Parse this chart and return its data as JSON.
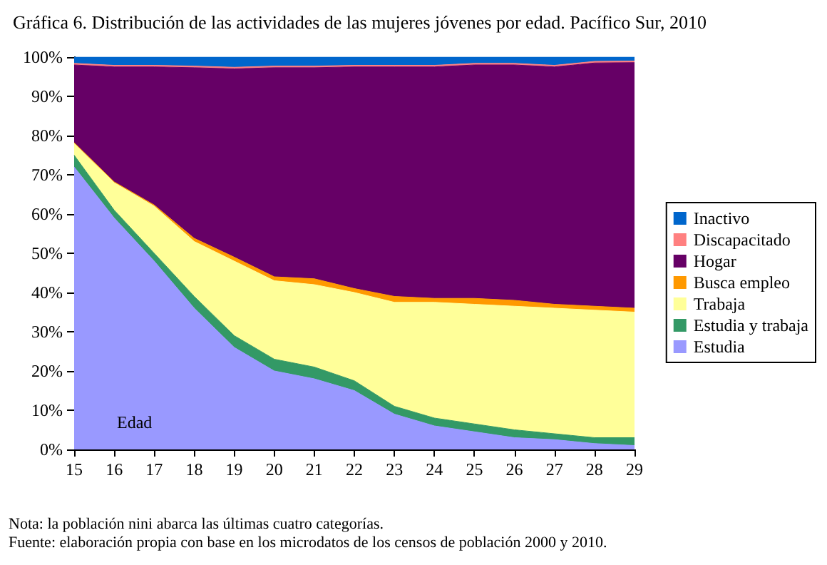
{
  "chart_data": {
    "type": "area",
    "stacked": true,
    "title": "Gráfica 6. Distribución de las actividades de las mujeres jóvenes por edad. Pacífico Sur, 2010",
    "xlabel": "Edad",
    "categories": [
      "15",
      "16",
      "17",
      "18",
      "19",
      "20",
      "21",
      "22",
      "23",
      "24",
      "25",
      "26",
      "27",
      "28",
      "29"
    ],
    "series": [
      {
        "name": "Estudia",
        "color": "#9999ff",
        "values": [
          72,
          59,
          48,
          36,
          26,
          20,
          18,
          15,
          9,
          6,
          4.5,
          3,
          2.5,
          1.5,
          1
        ]
      },
      {
        "name": "Estudia y trabaja",
        "color": "#339966",
        "values": [
          3,
          2,
          2,
          3,
          3,
          3,
          3,
          2.5,
          2,
          2,
          2,
          2,
          1.5,
          1.5,
          2
        ]
      },
      {
        "name": "Trabaja",
        "color": "#ffff99",
        "values": [
          3,
          7,
          12,
          14,
          19,
          20,
          21,
          22.5,
          26.5,
          29.5,
          30.5,
          31.5,
          32,
          32.5,
          32
        ]
      },
      {
        "name": "Busca empleo",
        "color": "#ff9900",
        "values": [
          0.2,
          0.2,
          0.3,
          0.8,
          1,
          1,
          1.5,
          1,
          1.5,
          1,
          1.5,
          1.5,
          1,
          1,
          1
        ]
      },
      {
        "name": "Hogar",
        "color": "#660066",
        "values": [
          19.8,
          29.3,
          35.2,
          43.5,
          48,
          53.3,
          53.8,
          56.5,
          58.5,
          59,
          59.5,
          60,
          60.5,
          62,
          62.6
        ]
      },
      {
        "name": "Discapacitado",
        "color": "#ff8080",
        "values": [
          0.4,
          0.4,
          0.4,
          0.4,
          0.4,
          0.4,
          0.4,
          0.4,
          0.4,
          0.4,
          0.4,
          0.4,
          0.4,
          0.4,
          0.4
        ]
      },
      {
        "name": "Inactivo",
        "color": "#0066cc",
        "values": [
          1.6,
          2.1,
          2.1,
          2.3,
          2.6,
          2.3,
          2.3,
          2.1,
          2.1,
          2.1,
          1.6,
          1.6,
          2.1,
          1.1,
          1.0
        ]
      }
    ],
    "ylim": [
      0,
      100
    ],
    "yticks": [
      {
        "value": 0,
        "label": "0%"
      },
      {
        "value": 10,
        "label": "10%"
      },
      {
        "value": 20,
        "label": "20%"
      },
      {
        "value": 30,
        "label": "30%"
      },
      {
        "value": 40,
        "label": "40%"
      },
      {
        "value": 50,
        "label": "50%"
      },
      {
        "value": 60,
        "label": "60%"
      },
      {
        "value": 70,
        "label": "70%"
      },
      {
        "value": 80,
        "label": "80%"
      },
      {
        "value": 90,
        "label": "90%"
      },
      {
        "value": 100,
        "label": "100%"
      }
    ],
    "grid": false,
    "legend": "right",
    "annotations": [
      "Nota: la población nini abarca las últimas cuatro categorías.",
      "Fuente: elaboración propia con base en los microdatos de los censos de población 2000 y 2010."
    ]
  }
}
